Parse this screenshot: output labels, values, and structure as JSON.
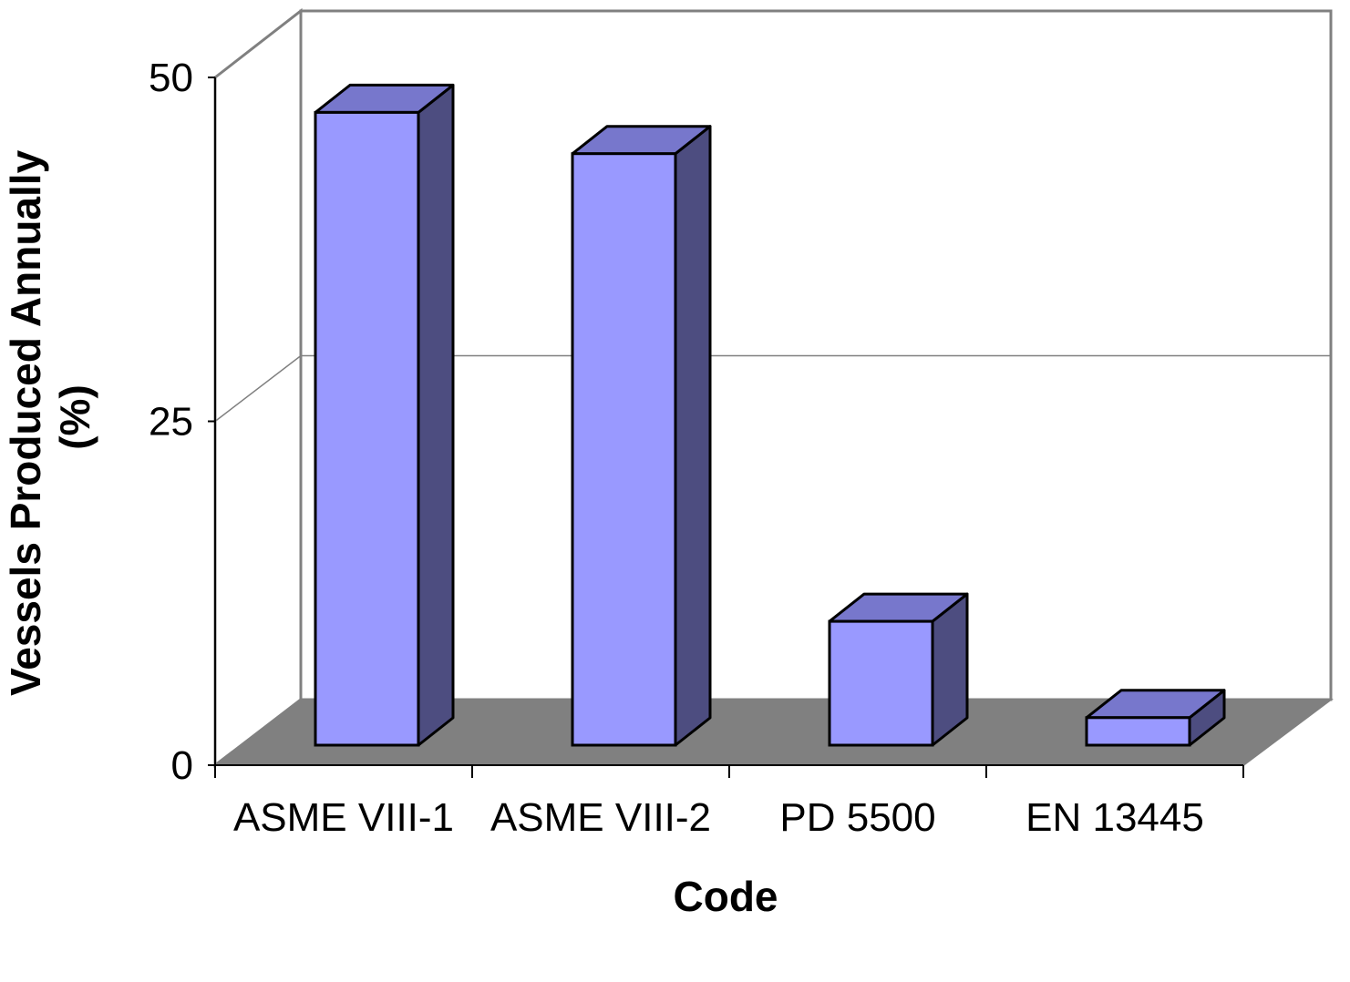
{
  "chart_data": {
    "type": "bar",
    "style": "3d-column",
    "categories": [
      "ASME VIII-1",
      "ASME VIII-2",
      "PD 5500",
      "EN 13445"
    ],
    "values": [
      46,
      43,
      9,
      2
    ],
    "xlabel": "Code",
    "ylabel_lines": [
      "Vessels  Produced Annually",
      "(%)"
    ],
    "ylim": [
      0,
      50
    ],
    "yticks": [
      "0",
      "25",
      "50"
    ],
    "grid": "horizontal",
    "legend": "none",
    "colors": {
      "bar_front": "#9999FF",
      "bar_side": "#4D4D80",
      "bar_top": "#7777CC",
      "floor": "#808080",
      "frame": "#808080",
      "gridline": "#808080",
      "outline": "#000000"
    }
  }
}
